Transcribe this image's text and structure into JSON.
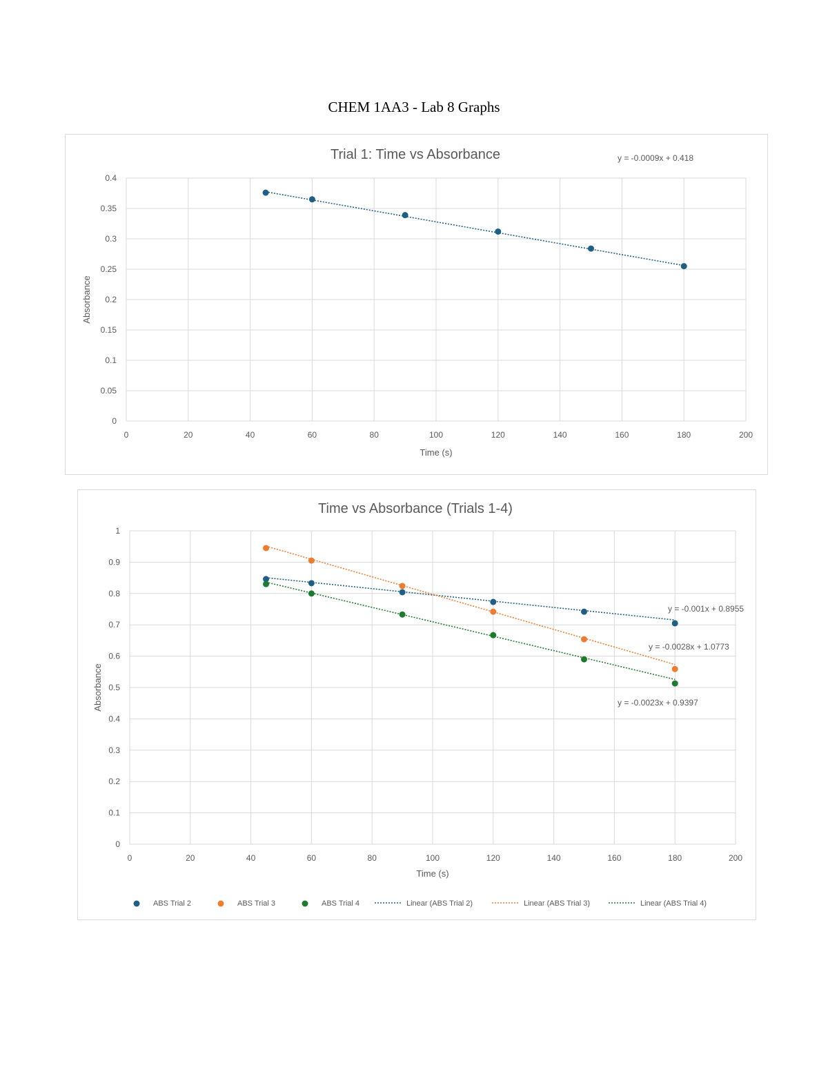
{
  "document": {
    "title": "CHEM 1AA3 - Lab 8 Graphs"
  },
  "colors": {
    "trial1": "#1f5f85",
    "trial2": "#1f5f85",
    "trial3": "#ed7d31",
    "trial4": "#1e7a2e",
    "grid": "#d9d9d9",
    "text": "#595959"
  },
  "chart_data": [
    {
      "type": "scatter",
      "title": "Trial 1: Time vs Absorbance",
      "xlabel": "Time (s)",
      "ylabel": "Absorbance",
      "xlim": [
        0,
        200
      ],
      "ylim": [
        0,
        0.4
      ],
      "xticks": [
        "0",
        "20",
        "40",
        "60",
        "80",
        "100",
        "120",
        "140",
        "160",
        "180",
        "200"
      ],
      "yticks": [
        "0",
        "0.05",
        "0.1",
        "0.15",
        "0.2",
        "0.25",
        "0.3",
        "0.35",
        "0.4"
      ],
      "grid": true,
      "legend": "none",
      "series": [
        {
          "x": [
            45,
            60,
            90,
            120,
            150,
            180
          ],
          "y": [
            0.376,
            0.365,
            0.339,
            0.312,
            0.284,
            0.255
          ],
          "color": "#1f5f85",
          "trendline": {
            "type": "linear",
            "slope": -0.0009,
            "intercept": 0.418,
            "label": "y = -0.0009x + 0.418"
          }
        }
      ]
    },
    {
      "type": "scatter",
      "title": "Time vs Absorbance (Trials 1-4)",
      "xlabel": "Time (s)",
      "ylabel": "Absorbance",
      "xlim": [
        0,
        200
      ],
      "ylim": [
        0,
        1
      ],
      "xticks": [
        "0",
        "20",
        "40",
        "60",
        "80",
        "100",
        "120",
        "140",
        "160",
        "180",
        "200"
      ],
      "yticks": [
        "0",
        "0.1",
        "0.2",
        "0.3",
        "0.4",
        "0.5",
        "0.6",
        "0.7",
        "0.8",
        "0.9",
        "1"
      ],
      "grid": true,
      "legend": "bottom",
      "series": [
        {
          "name": "ABS Trial 2",
          "x": [
            45,
            60,
            90,
            120,
            150,
            180
          ],
          "y": [
            0.846,
            0.833,
            0.804,
            0.773,
            0.742,
            0.705
          ],
          "color": "#1f5f85",
          "trendline": {
            "type": "linear",
            "name": "Linear (ABS Trial 2)",
            "slope": -0.001,
            "intercept": 0.8955,
            "label": "y = -0.001x + 0.8955"
          }
        },
        {
          "name": "ABS Trial 3",
          "x": [
            45,
            60,
            90,
            120,
            150,
            180
          ],
          "y": [
            0.945,
            0.905,
            0.824,
            0.742,
            0.654,
            0.559
          ],
          "color": "#ed7d31",
          "trendline": {
            "type": "linear",
            "name": "Linear (ABS Trial 3)",
            "slope": -0.0028,
            "intercept": 1.0773,
            "label": "y = -0.0028x + 1.0773"
          }
        },
        {
          "name": "ABS Trial 4",
          "x": [
            45,
            60,
            90,
            120,
            150,
            180
          ],
          "y": [
            0.83,
            0.8,
            0.733,
            0.667,
            0.59,
            0.513
          ],
          "color": "#1e7a2e",
          "trendline": {
            "type": "linear",
            "name": "Linear (ABS Trial 4)",
            "slope": -0.0023,
            "intercept": 0.9397,
            "label": "y = -0.0023x + 0.9397"
          }
        }
      ]
    }
  ]
}
